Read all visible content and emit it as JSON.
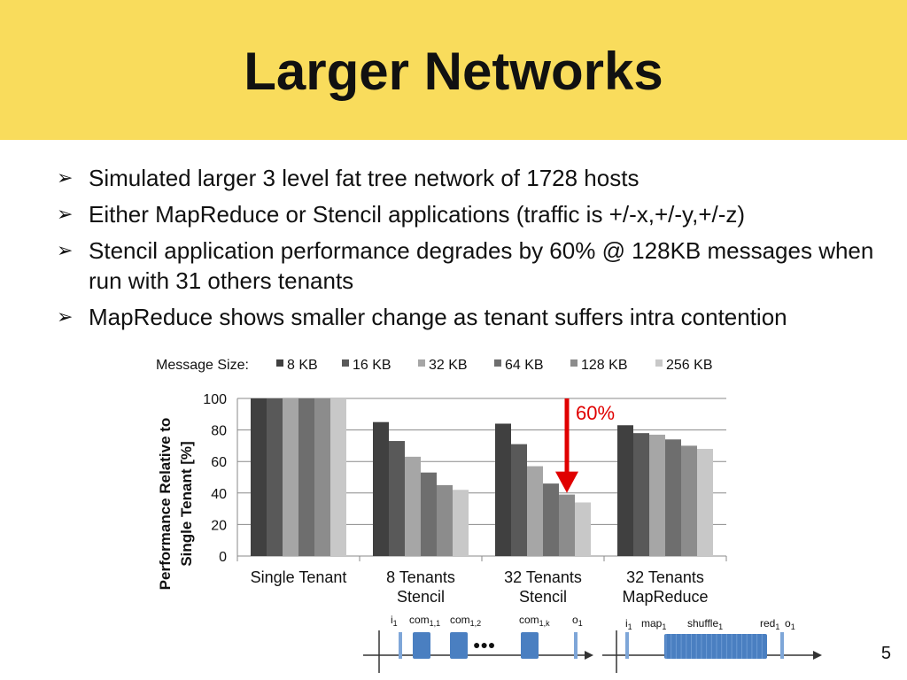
{
  "slide": {
    "title": "Larger Networks",
    "page_number": "5"
  },
  "bullets": [
    "Simulated larger 3 level fat tree network of 1728 hosts",
    "Either MapReduce or Stencil applications (traffic is +/-x,+/-y,+/-z)",
    "Stencil application performance degrades by 60% @ 128KB messages when run with 31 others tenants",
    "MapReduce shows smaller change as tenant suffers intra contention"
  ],
  "bullet_glyph": "➢",
  "chart_data": {
    "type": "bar",
    "legend_title": "Message Size:",
    "legend_position": "top",
    "ylabel_lines": [
      "Performance Relative to",
      "Single Tenant [%]"
    ],
    "ylim": [
      0,
      100
    ],
    "yticks": [
      0,
      20,
      40,
      60,
      80,
      100
    ],
    "grid": true,
    "categories": [
      [
        "Single Tenant"
      ],
      [
        "8 Tenants",
        "Stencil"
      ],
      [
        "32 Tenants",
        "Stencil"
      ],
      [
        "32 Tenants",
        "MapReduce"
      ]
    ],
    "series": [
      {
        "name": "8 KB",
        "color": "#404040",
        "values": [
          100,
          85,
          84,
          83
        ]
      },
      {
        "name": "16 KB",
        "color": "#595959",
        "values": [
          100,
          73,
          71,
          78
        ]
      },
      {
        "name": "32 KB",
        "color": "#a6a6a6",
        "values": [
          100,
          63,
          57,
          77
        ]
      },
      {
        "name": "64 KB",
        "color": "#6e6e6e",
        "values": [
          100,
          53,
          46,
          74
        ]
      },
      {
        "name": "128 KB",
        "color": "#8c8c8c",
        "values": [
          100,
          45,
          39,
          70
        ]
      },
      {
        "name": "256 KB",
        "color": "#c8c8c8",
        "values": [
          100,
          42,
          34,
          68
        ]
      }
    ],
    "annotation": {
      "text": "60%",
      "color": "#e00000",
      "category_index": 2,
      "series_index": 4
    }
  },
  "timelines": [
    {
      "labels": [
        {
          "main": "i",
          "sub": "1"
        },
        {
          "main": "com",
          "sub": "1,1"
        },
        {
          "main": "com",
          "sub": "1,2"
        },
        {
          "main": "com",
          "sub": "1,k"
        },
        {
          "main": "o",
          "sub": "1"
        }
      ],
      "ellipsis": "●●●"
    },
    {
      "labels": [
        {
          "main": "i",
          "sub": "1"
        },
        {
          "main": "map",
          "sub": "1"
        },
        {
          "main": "shuffle",
          "sub": "1"
        },
        {
          "main": "red",
          "sub": "1"
        },
        {
          "main": "o",
          "sub": "1"
        }
      ]
    }
  ],
  "colors": {
    "title_band": "#f9dc5c",
    "timeline_block": "#4a7fc1",
    "timeline_marker": "#7ea6d8"
  }
}
